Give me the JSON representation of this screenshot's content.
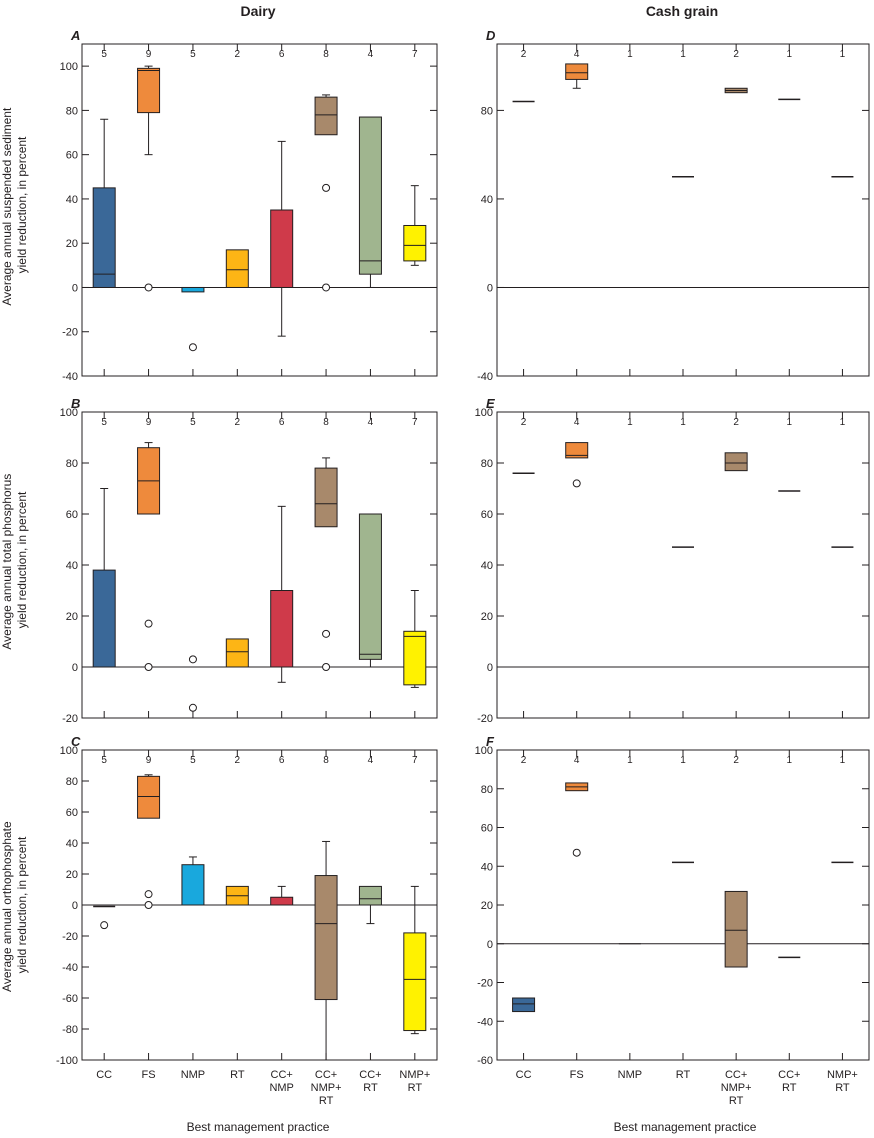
{
  "colors": {
    "CC": "#3a6898",
    "FS": "#ee8a3c",
    "NMP": "#19a8dd",
    "RT": "#fdb515",
    "CC+NMP": "#cf3a4a",
    "CC+NMP+RT": "#a8896b",
    "CC+RT": "#a0b58f",
    "NMP+RT": "#fff200",
    "outlier": "#ffffff"
  },
  "column_titles": {
    "left": "Dairy",
    "right": "Cash grain"
  },
  "x_axis_title": {
    "left": "Best management practice",
    "right": "Best management practice"
  },
  "y_axis_titles": {
    "row1": [
      "Average annual suspended sediment",
      "yield reduction, in percent"
    ],
    "row2": [
      "Average annual total phosphorus",
      "yield reduction, in percent"
    ],
    "row3": [
      "Average annual orthophosphate",
      "yield reduction, in percent"
    ]
  },
  "chart_data": [
    {
      "panel": "A",
      "type": "box",
      "ylim": [
        -40,
        110
      ],
      "yticks": [
        -40,
        -20,
        0,
        20,
        40,
        60,
        80,
        100
      ],
      "categories": [
        "CC",
        "FS",
        "NMP",
        "RT",
        "CC+NMP",
        "CC+NMP+RT",
        "CC+RT",
        "NMP+RT"
      ],
      "boxes": [
        {
          "cat": "CC",
          "n": "5",
          "min": 0,
          "q1": 0,
          "median": 6,
          "q3": 45,
          "max": 76,
          "outliers": []
        },
        {
          "cat": "FS",
          "n": "9",
          "min": 60,
          "q1": 79,
          "median": 98,
          "q3": 99,
          "max": 100,
          "outliers": [
            0
          ]
        },
        {
          "cat": "NMP",
          "n": "5",
          "min": -2,
          "q1": -2,
          "median": 0,
          "q3": 0,
          "max": 0,
          "outliers": [
            -27
          ]
        },
        {
          "cat": "RT",
          "n": "2",
          "min": 0,
          "q1": 0,
          "median": 8,
          "q3": 17,
          "max": 17,
          "outliers": []
        },
        {
          "cat": "CC+NMP",
          "n": "6",
          "min": -22,
          "q1": 0,
          "median": 0,
          "q3": 35,
          "max": 66,
          "outliers": []
        },
        {
          "cat": "CC+NMP+RT",
          "n": "8",
          "min": 69,
          "q1": 69,
          "median": 78,
          "q3": 86,
          "max": 87,
          "outliers": [
            45,
            0
          ]
        },
        {
          "cat": "CC+RT",
          "n": "4",
          "min": 0,
          "q1": 6,
          "median": 12,
          "q3": 77,
          "max": 77,
          "outliers": []
        },
        {
          "cat": "NMP+RT",
          "n": "7",
          "min": 10,
          "q1": 12,
          "median": 19,
          "q3": 28,
          "max": 46,
          "outliers": []
        }
      ]
    },
    {
      "panel": "B",
      "type": "box",
      "ylim": [
        -20,
        100
      ],
      "yticks": [
        -20,
        0,
        20,
        40,
        60,
        80,
        100
      ],
      "categories": [
        "CC",
        "FS",
        "NMP",
        "RT",
        "CC+NMP",
        "CC+NMP+RT",
        "CC+RT",
        "NMP+RT"
      ],
      "boxes": [
        {
          "cat": "CC",
          "n": "5",
          "min": 0,
          "q1": 0,
          "median": 0,
          "q3": 38,
          "max": 70,
          "outliers": []
        },
        {
          "cat": "FS",
          "n": "9",
          "min": 60,
          "q1": 60,
          "median": 73,
          "q3": 86,
          "max": 88,
          "outliers": [
            17,
            0
          ]
        },
        {
          "cat": "NMP",
          "n": "5",
          "min": 0,
          "q1": 0,
          "median": 0,
          "q3": 0,
          "max": 0,
          "outliers": [
            3,
            -16
          ]
        },
        {
          "cat": "RT",
          "n": "2",
          "min": 0,
          "q1": 0,
          "median": 6,
          "q3": 11,
          "max": 11,
          "outliers": []
        },
        {
          "cat": "CC+NMP",
          "n": "6",
          "min": -6,
          "q1": 0,
          "median": 0,
          "q3": 30,
          "max": 63,
          "outliers": []
        },
        {
          "cat": "CC+NMP+RT",
          "n": "8",
          "min": 55,
          "q1": 55,
          "median": 64,
          "q3": 78,
          "max": 82,
          "outliers": [
            13,
            0
          ]
        },
        {
          "cat": "CC+RT",
          "n": "4",
          "min": 0,
          "q1": 3,
          "median": 5,
          "q3": 60,
          "max": 60,
          "outliers": []
        },
        {
          "cat": "NMP+RT",
          "n": "7",
          "min": -8,
          "q1": -7,
          "median": 12,
          "q3": 14,
          "max": 30,
          "outliers": []
        }
      ]
    },
    {
      "panel": "C",
      "type": "box",
      "ylim": [
        -100,
        100
      ],
      "yticks": [
        -100,
        -80,
        -60,
        -40,
        -20,
        0,
        20,
        40,
        60,
        80,
        100
      ],
      "categories": [
        "CC",
        "FS",
        "NMP",
        "RT",
        "CC+NMP",
        "CC+NMP+RT",
        "CC+RT",
        "NMP+RT"
      ],
      "boxes": [
        {
          "cat": "CC",
          "n": "5",
          "min": -1,
          "q1": -1,
          "median": -1,
          "q3": -1,
          "max": -1,
          "outliers": [
            -13
          ]
        },
        {
          "cat": "FS",
          "n": "9",
          "min": 56,
          "q1": 56,
          "median": 70,
          "q3": 83,
          "max": 84,
          "outliers": [
            7,
            0
          ]
        },
        {
          "cat": "NMP",
          "n": "5",
          "min": 0,
          "q1": 0,
          "median": 0,
          "q3": 26,
          "max": 31,
          "outliers": []
        },
        {
          "cat": "RT",
          "n": "2",
          "min": 0,
          "q1": 0,
          "median": 6,
          "q3": 12,
          "max": 12,
          "outliers": []
        },
        {
          "cat": "CC+NMP",
          "n": "6",
          "min": 0,
          "q1": 0,
          "median": 0,
          "q3": 5,
          "max": 12,
          "outliers": []
        },
        {
          "cat": "CC+NMP+RT",
          "n": "8",
          "min": -100,
          "q1": -61,
          "median": -12,
          "q3": 19,
          "max": 41,
          "outliers": []
        },
        {
          "cat": "CC+RT",
          "n": "4",
          "min": -12,
          "q1": 0,
          "median": 4,
          "q3": 12,
          "max": 12,
          "outliers": []
        },
        {
          "cat": "NMP+RT",
          "n": "7",
          "min": -83,
          "q1": -81,
          "median": -48,
          "q3": -18,
          "max": 12,
          "outliers": []
        }
      ]
    },
    {
      "panel": "D",
      "type": "box",
      "ylim": [
        -40,
        110
      ],
      "yticks": [
        -40,
        0,
        40,
        80
      ],
      "categories": [
        "CC",
        "FS",
        "NMP",
        "RT",
        "CC+NMP+RT",
        "CC+RT",
        "NMP+RT"
      ],
      "boxes": [
        {
          "cat": "CC",
          "n": "2",
          "min": 84,
          "q1": 84,
          "median": 84,
          "q3": 84,
          "max": 84,
          "outliers": []
        },
        {
          "cat": "FS",
          "n": "4",
          "min": 90,
          "q1": 94,
          "median": 97,
          "q3": 101,
          "max": 101,
          "outliers": []
        },
        {
          "cat": "NMP",
          "n": "1",
          "min": 0,
          "q1": 0,
          "median": 0,
          "q3": 0,
          "max": 0,
          "outliers": []
        },
        {
          "cat": "RT",
          "n": "1",
          "min": 50,
          "q1": 50,
          "median": 50,
          "q3": 50,
          "max": 50,
          "outliers": []
        },
        {
          "cat": "CC+NMP+RT",
          "n": "2",
          "min": 88,
          "q1": 88,
          "median": 89,
          "q3": 90,
          "max": 90,
          "outliers": []
        },
        {
          "cat": "CC+RT",
          "n": "1",
          "min": 85,
          "q1": 85,
          "median": 85,
          "q3": 85,
          "max": 85,
          "outliers": []
        },
        {
          "cat": "NMP+RT",
          "n": "1",
          "min": 50,
          "q1": 50,
          "median": 50,
          "q3": 50,
          "max": 50,
          "outliers": []
        }
      ]
    },
    {
      "panel": "E",
      "type": "box",
      "ylim": [
        -20,
        100
      ],
      "yticks": [
        -20,
        0,
        20,
        40,
        60,
        80,
        100
      ],
      "categories": [
        "CC",
        "FS",
        "NMP",
        "RT",
        "CC+NMP+RT",
        "CC+RT",
        "NMP+RT"
      ],
      "boxes": [
        {
          "cat": "CC",
          "n": "2",
          "min": 76,
          "q1": 76,
          "median": 76,
          "q3": 76,
          "max": 76,
          "outliers": []
        },
        {
          "cat": "FS",
          "n": "4",
          "min": 82,
          "q1": 82,
          "median": 83,
          "q3": 88,
          "max": 88,
          "outliers": [
            72
          ]
        },
        {
          "cat": "NMP",
          "n": "1",
          "min": 0,
          "q1": 0,
          "median": 0,
          "q3": 0,
          "max": 0,
          "outliers": []
        },
        {
          "cat": "RT",
          "n": "1",
          "min": 47,
          "q1": 47,
          "median": 47,
          "q3": 47,
          "max": 47,
          "outliers": []
        },
        {
          "cat": "CC+NMP+RT",
          "n": "2",
          "min": 77,
          "q1": 77,
          "median": 80,
          "q3": 84,
          "max": 84,
          "outliers": []
        },
        {
          "cat": "CC+RT",
          "n": "1",
          "min": 69,
          "q1": 69,
          "median": 69,
          "q3": 69,
          "max": 69,
          "outliers": []
        },
        {
          "cat": "NMP+RT",
          "n": "1",
          "min": 47,
          "q1": 47,
          "median": 47,
          "q3": 47,
          "max": 47,
          "outliers": []
        }
      ]
    },
    {
      "panel": "F",
      "type": "box",
      "ylim": [
        -60,
        100
      ],
      "yticks": [
        -60,
        -40,
        -20,
        0,
        20,
        40,
        60,
        80,
        100
      ],
      "categories": [
        "CC",
        "FS",
        "NMP",
        "RT",
        "CC+NMP+RT",
        "CC+RT",
        "NMP+RT"
      ],
      "boxes": [
        {
          "cat": "CC",
          "n": "2",
          "min": -35,
          "q1": -35,
          "median": -31,
          "q3": -28,
          "max": -28,
          "outliers": []
        },
        {
          "cat": "FS",
          "n": "4",
          "min": 79,
          "q1": 79,
          "median": 81,
          "q3": 83,
          "max": 83,
          "outliers": [
            47
          ]
        },
        {
          "cat": "NMP",
          "n": "1",
          "min": 0,
          "q1": 0,
          "median": 0,
          "q3": 0,
          "max": 0,
          "outliers": []
        },
        {
          "cat": "RT",
          "n": "1",
          "min": 42,
          "q1": 42,
          "median": 42,
          "q3": 42,
          "max": 42,
          "outliers": []
        },
        {
          "cat": "CC+NMP+RT",
          "n": "2",
          "min": -12,
          "q1": -12,
          "median": 7,
          "q3": 27,
          "max": 27,
          "outliers": []
        },
        {
          "cat": "CC+RT",
          "n": "1",
          "min": -7,
          "q1": -7,
          "median": -7,
          "q3": -7,
          "max": -7,
          "outliers": []
        },
        {
          "cat": "NMP+RT",
          "n": "1",
          "min": 42,
          "q1": 42,
          "median": 42,
          "q3": 42,
          "max": 42,
          "outliers": []
        }
      ]
    }
  ]
}
